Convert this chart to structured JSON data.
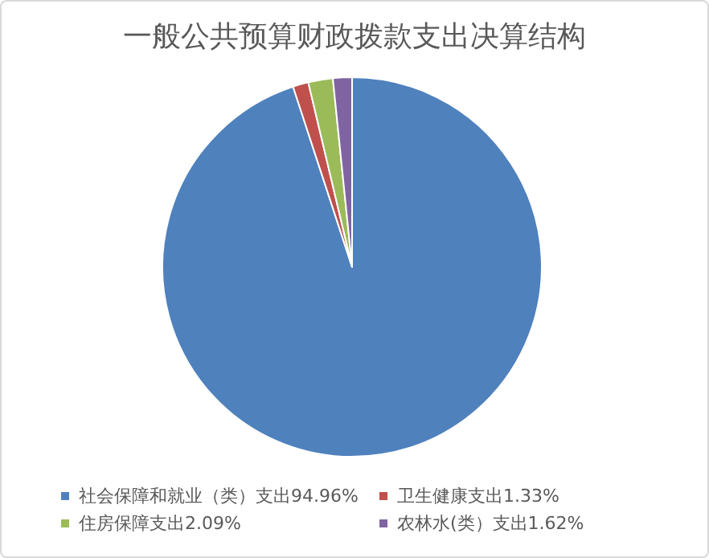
{
  "chart_data": {
    "type": "pie",
    "title": "一般公共预算财政拨款支出决算结构",
    "categories": [
      "社会保障和就业（类）支出94.96%",
      "卫生健康支出1.33%",
      "住房保障支出2.09%",
      "农林水(类）支出1.62%"
    ],
    "values": [
      94.96,
      1.33,
      2.09,
      1.62
    ],
    "colors": [
      "#4f81bd",
      "#c0504d",
      "#9bbb59",
      "#8064a2"
    ],
    "legend": "bottom"
  }
}
